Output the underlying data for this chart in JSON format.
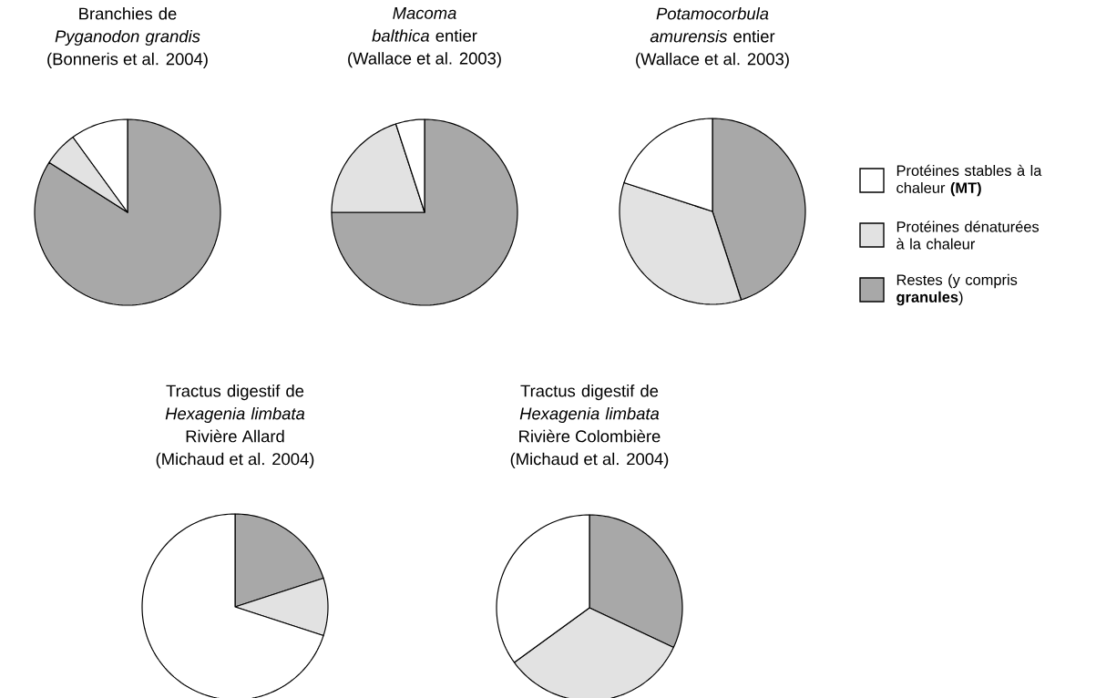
{
  "chart_data": [
    {
      "type": "pie",
      "title": "Branchies de *Pyganodon grandis*",
      "subtitle": "(Bonneris et al. 2004)",
      "categories": [
        null,
        null,
        null
      ],
      "values": [
        84,
        6,
        10
      ],
      "colors": [
        "#a8a8a8",
        "#e2e2e2",
        "#ffffff"
      ],
      "legend": false
    },
    {
      "type": "pie",
      "title": "*Macoma balthica* entier",
      "subtitle": "(Wallace et al. 2003)",
      "categories": [
        null,
        null,
        null
      ],
      "values": [
        75,
        20,
        5
      ],
      "colors": [
        "#a8a8a8",
        "#e2e2e2",
        "#ffffff"
      ],
      "legend": false
    },
    {
      "type": "pie",
      "title": "*Potamocorbula amurensis* entier",
      "subtitle": "(Wallace et al. 2003)",
      "categories": [
        "Restes (y compris **granules**)",
        "Protéines dénaturées à la chaleur",
        "Protéines stables à la chaleur **(MT)**"
      ],
      "values": [
        45,
        35,
        20
      ],
      "colors": [
        "#a8a8a8",
        "#e2e2e2",
        "#ffffff"
      ],
      "legend": "right"
    },
    {
      "type": "pie",
      "title": "Tractus digestif de *Hexagenia limbata*",
      "subtitle": "Rivière Allard",
      "annotations": [
        "(Michaud et al. 2004)"
      ],
      "categories": [
        null,
        null,
        null
      ],
      "values": [
        20,
        10,
        70
      ],
      "colors": [
        "#a8a8a8",
        "#e2e2e2",
        "#ffffff"
      ],
      "legend": false
    },
    {
      "type": "pie",
      "title": "Tractus digestif de *Hexagenia limbata*",
      "subtitle": "Rivière Colombière",
      "annotations": [
        "(Michaud et al. 2004)"
      ],
      "categories": [
        null,
        null,
        null
      ],
      "values": [
        32,
        33,
        35
      ],
      "colors": [
        "#a8a8a8",
        "#e2e2e2",
        "#ffffff"
      ],
      "legend": false
    }
  ]
}
